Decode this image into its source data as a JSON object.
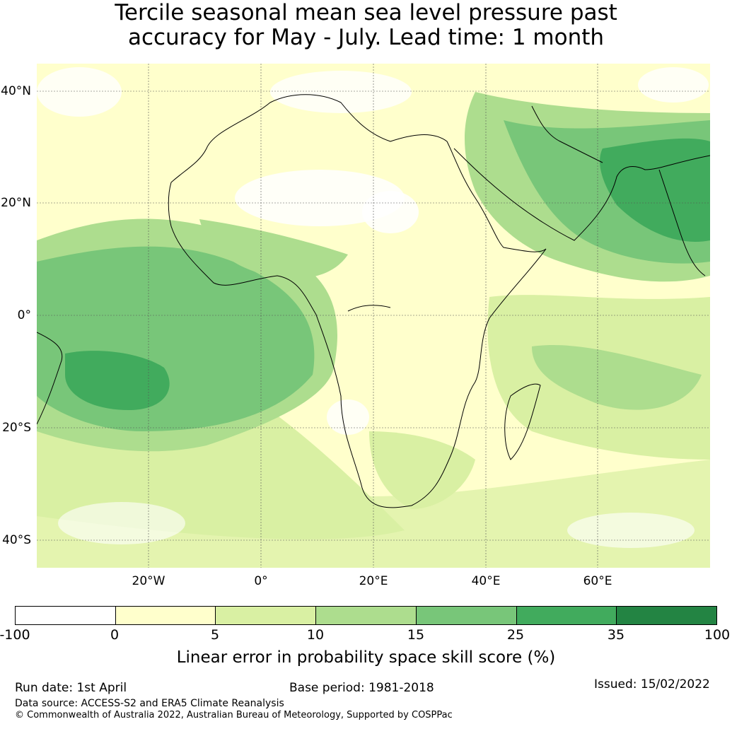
{
  "title": {
    "line1": "Tercile seasonal mean sea level pressure past",
    "line2": "accuracy for May - July. Lead time: 1 month"
  },
  "map": {
    "region": "Africa",
    "lat_labels": [
      "40°N",
      "20°N",
      "0°",
      "20°S",
      "40°S"
    ],
    "lon_labels": [
      "20°W",
      "0°",
      "20°E",
      "40°E",
      "60°E"
    ],
    "extent": {
      "lon": [
        -40,
        80
      ],
      "lat": [
        -45,
        45
      ]
    }
  },
  "legend": {
    "title": "Linear error in probability space skill score (%)",
    "ticks": [
      "-100",
      "0",
      "5",
      "10",
      "15",
      "25",
      "35",
      "100"
    ],
    "colors": [
      "#ffffff",
      "#ffffcc",
      "#d9f0a3",
      "#addd8e",
      "#78c679",
      "#41ab5d",
      "#238443"
    ]
  },
  "footer": {
    "run_date": "Run date: 1st April",
    "base_period": "Base period: 1981-2018",
    "issued": "Issued: 15/02/2022",
    "data_source": "Data source: ACCESS-S2 and ERA5 Climate Reanalysis",
    "copyright": "© Commonwealth of Australia 2022, Australian Bureau of Meteorology, Supported by COSPPac"
  }
}
